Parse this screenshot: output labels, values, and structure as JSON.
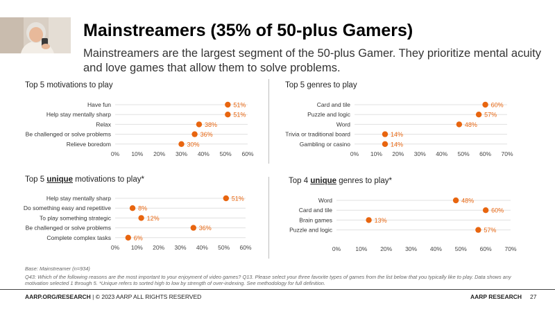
{
  "header": {
    "title": "Mainstreamers (35% of 50-plus Gamers)",
    "subtitle": "Mainstreamers are the largest segment of the 50-plus Gamer. They prioritize mental acuity and love games that allow them to solve problems."
  },
  "sections": {
    "motivations": "Top 5 motivations to play",
    "genres": "Top 5 genres to play",
    "unique_motivations_pre": "Top 5 ",
    "unique_motivations_u": "unique",
    "unique_motivations_post": " motivations to play*",
    "unique_genres_pre": "Top 4 ",
    "unique_genres_u": "unique",
    "unique_genres_post": " genres to play*"
  },
  "notes": {
    "base": "Base: Mainstreamer (n=934)",
    "questions": "Q43: Which of the following reasons are the most important to your enjoyment of video games?  Q13. Please select your three favorite types of games from the list below that you typically like to play. Data shows any motivation selected 1 through 5. *Unique refers to sorted high to low by strength of over-indexing. See methodology for full definition."
  },
  "footer": {
    "left_bold": "AARP.ORG/RESEARCH",
    "left_rest": " | © 2023 AARP ALL RIGHTS RESERVED",
    "right": "AARP RESEARCH",
    "page": "27"
  },
  "colors": {
    "dot": "#e8650f",
    "grid": "#e0e0e0",
    "label": "#e8650f"
  },
  "chart_data": [
    {
      "type": "dot",
      "title": "Top 5 motivations to play",
      "categories": [
        "Have fun",
        "Help stay mentally sharp",
        "Relax",
        "Be challenged or solve problems",
        "Relieve boredom"
      ],
      "values": [
        51,
        51,
        38,
        36,
        30
      ],
      "labels": [
        "51%",
        "51%",
        "38%",
        "36%",
        "30%"
      ],
      "xlim": [
        0,
        60
      ],
      "ticks": [
        "0%",
        "10%",
        "20%",
        "30%",
        "40%",
        "50%",
        "60%"
      ]
    },
    {
      "type": "dot",
      "title": "Top 5 genres to play",
      "categories": [
        "Card and tile",
        "Puzzle and logic",
        "Word",
        "Trivia or traditional board",
        "Gambling or casino"
      ],
      "values": [
        60,
        57,
        48,
        14,
        14
      ],
      "labels": [
        "60%",
        "57%",
        "48%",
        "14%",
        "14%"
      ],
      "xlim": [
        0,
        70
      ],
      "ticks": [
        "0%",
        "10%",
        "20%",
        "30%",
        "40%",
        "50%",
        "60%",
        "70%"
      ]
    },
    {
      "type": "dot",
      "title": "Top 5 unique motivations to play*",
      "categories": [
        "Help stay mentally sharp",
        "Do something easy and repetitive",
        "To play something strategic",
        "Be challenged or solve problems",
        "Complete complex tasks"
      ],
      "values": [
        51,
        8,
        12,
        36,
        6
      ],
      "labels": [
        "51%",
        "8%",
        "12%",
        "36%",
        "6%"
      ],
      "xlim": [
        0,
        60
      ],
      "ticks": [
        "0%",
        "10%",
        "20%",
        "30%",
        "40%",
        "50%",
        "60%"
      ]
    },
    {
      "type": "dot",
      "title": "Top 4 unique genres to play*",
      "categories": [
        "Word",
        "Card and tile",
        "Brain games",
        "Puzzle and logic"
      ],
      "values": [
        48,
        60,
        13,
        57
      ],
      "labels": [
        "48%",
        "60%",
        "13%",
        "57%"
      ],
      "xlim": [
        0,
        70
      ],
      "ticks": [
        "0%",
        "10%",
        "20%",
        "30%",
        "40%",
        "50%",
        "60%",
        "70%"
      ]
    }
  ]
}
